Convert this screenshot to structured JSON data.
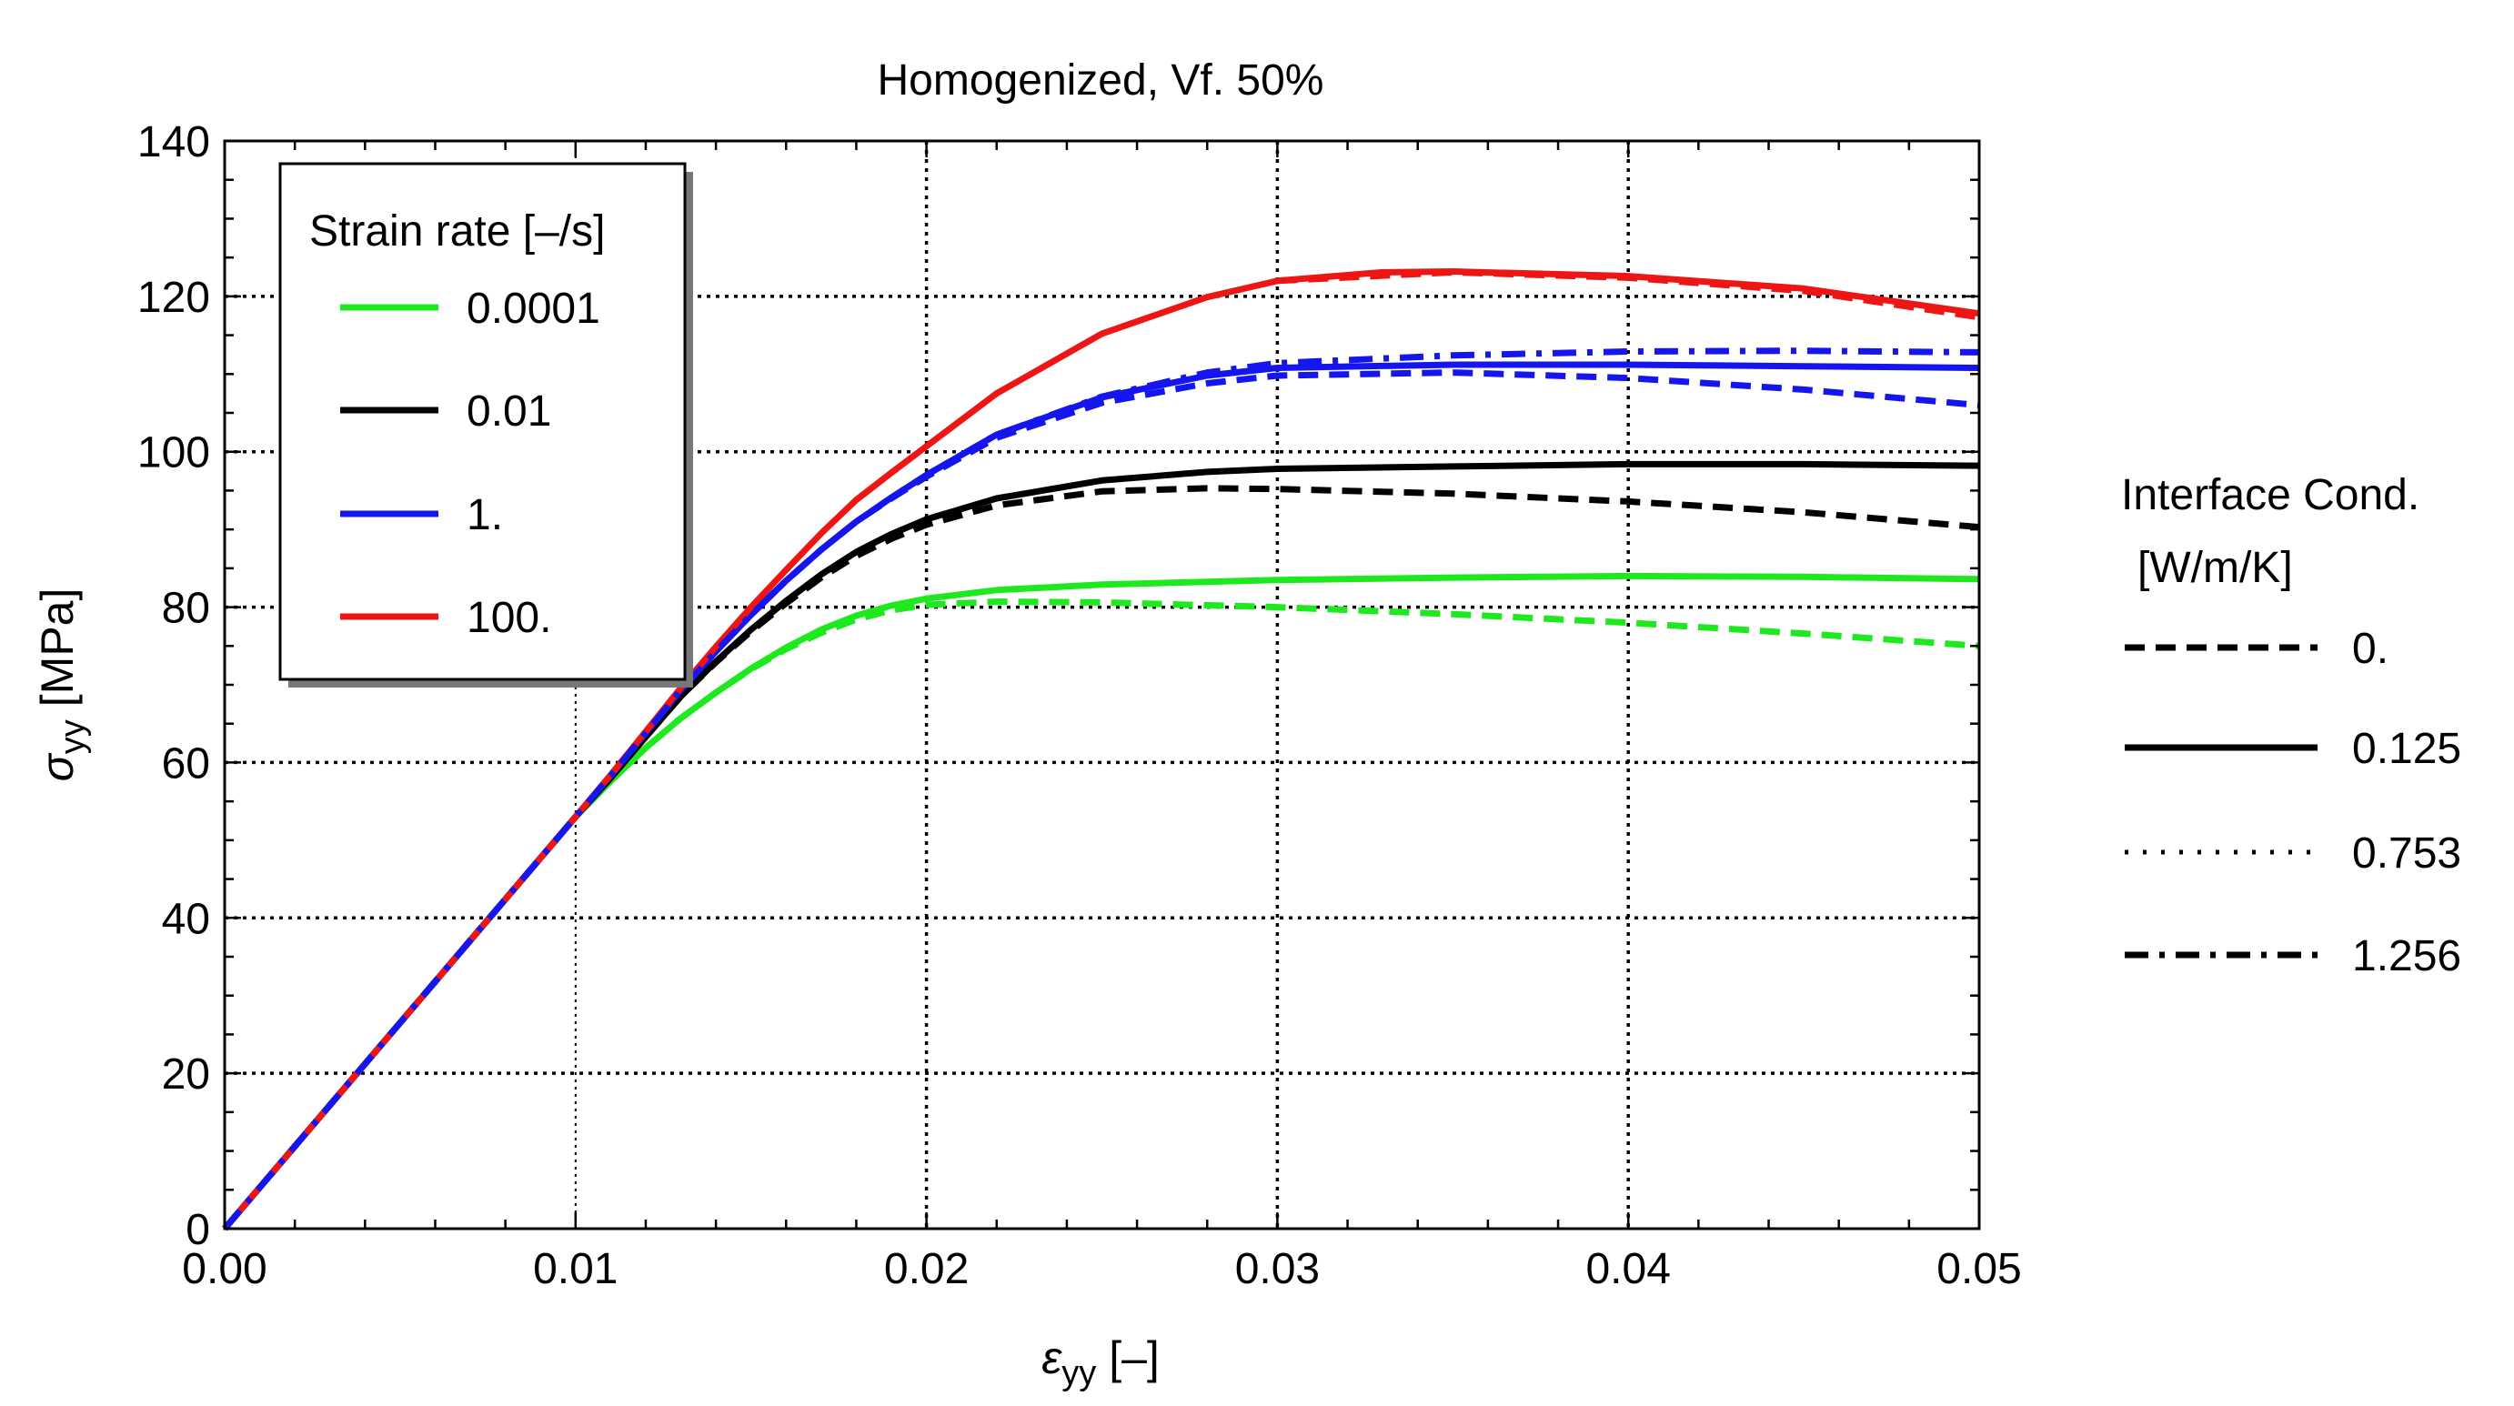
{
  "chart_data": {
    "type": "line",
    "title": "Homogenized, Vf. 50%",
    "xlabel": {
      "symbol": "ε",
      "sub": "yy",
      "unit": "[–]"
    },
    "ylabel": {
      "symbol": "σ",
      "sub": "yy",
      "unit": "[MPa]"
    },
    "xlim": [
      0,
      0.05
    ],
    "ylim": [
      0,
      140
    ],
    "xticks": [
      0,
      0.01,
      0.02,
      0.03,
      0.04,
      0.05
    ],
    "xtick_labels": [
      "0.00",
      "0.01",
      "0.02",
      "0.03",
      "0.04",
      "0.05"
    ],
    "yticks": [
      0,
      20,
      40,
      60,
      80,
      100,
      120,
      140
    ],
    "ytick_labels": [
      "0",
      "20",
      "40",
      "60",
      "80",
      "100",
      "120",
      "140"
    ],
    "grid": true,
    "legend_rate": {
      "title": "Strain rate [–/s]",
      "placement": "top-left",
      "entries": [
        {
          "label": "0.0001",
          "color": "#1ee81e"
        },
        {
          "label": "0.01",
          "color": "#000000"
        },
        {
          "label": "1.",
          "color": "#1515ee"
        },
        {
          "label": "100.",
          "color": "#ee1515"
        }
      ]
    },
    "legend_cond": {
      "title_line1": "Interface Cond.",
      "title_line2": "[W/m/K]",
      "placement": "right",
      "entries": [
        {
          "label": "0.",
          "style": "dashed"
        },
        {
          "label": "0.125",
          "style": "solid"
        },
        {
          "label": "0.753",
          "style": "dotted"
        },
        {
          "label": "1.256",
          "style": "dashdot"
        }
      ]
    },
    "series": [
      {
        "name": "0.0001 / 0.",
        "rate": "0.0001",
        "cond": "0.",
        "color": "#1ee81e",
        "style": "dashed",
        "x": [
          0,
          0.005,
          0.01,
          0.011,
          0.012,
          0.013,
          0.014,
          0.015,
          0.016,
          0.017,
          0.018,
          0.019,
          0.02,
          0.022,
          0.025,
          0.03,
          0.035,
          0.04,
          0.045,
          0.05
        ],
        "y": [
          0,
          26.5,
          53,
          57.6,
          61.9,
          65.7,
          69.0,
          72.0,
          74.6,
          76.7,
          78.4,
          79.6,
          80.3,
          80.7,
          80.6,
          80.0,
          79.1,
          78.0,
          76.6,
          75.0
        ]
      },
      {
        "name": "0.0001 / 0.125",
        "rate": "0.0001",
        "cond": "0.125",
        "color": "#1ee81e",
        "style": "solid",
        "x": [
          0,
          0.005,
          0.01,
          0.011,
          0.012,
          0.013,
          0.014,
          0.015,
          0.016,
          0.017,
          0.018,
          0.019,
          0.02,
          0.022,
          0.025,
          0.03,
          0.035,
          0.04,
          0.045,
          0.05
        ],
        "y": [
          0,
          26.5,
          53,
          57.6,
          61.9,
          65.7,
          69.0,
          72.1,
          74.8,
          77.1,
          78.9,
          80.2,
          81.1,
          82.2,
          82.9,
          83.5,
          83.8,
          84.0,
          83.9,
          83.6
        ]
      },
      {
        "name": "0.01 / 0.",
        "rate": "0.01",
        "cond": "0.",
        "color": "#000000",
        "style": "dashed",
        "x": [
          0,
          0.005,
          0.01,
          0.011,
          0.012,
          0.013,
          0.014,
          0.015,
          0.016,
          0.017,
          0.018,
          0.019,
          0.02,
          0.022,
          0.025,
          0.028,
          0.03,
          0.035,
          0.04,
          0.045,
          0.05
        ],
        "y": [
          0,
          26.5,
          53,
          58.0,
          63.3,
          68.5,
          72.9,
          76.9,
          80.5,
          83.8,
          86.6,
          88.8,
          90.6,
          93.1,
          94.9,
          95.3,
          95.2,
          94.6,
          93.6,
          92.2,
          90.3
        ]
      },
      {
        "name": "0.01 / 0.125",
        "rate": "0.01",
        "cond": "0.125",
        "color": "#000000",
        "style": "solid",
        "x": [
          0,
          0.005,
          0.01,
          0.011,
          0.012,
          0.013,
          0.014,
          0.015,
          0.016,
          0.017,
          0.018,
          0.019,
          0.02,
          0.022,
          0.025,
          0.028,
          0.03,
          0.035,
          0.04,
          0.045,
          0.05
        ],
        "y": [
          0,
          26.5,
          53,
          58.0,
          63.3,
          68.5,
          73.0,
          77.1,
          80.8,
          84.2,
          87.1,
          89.4,
          91.3,
          94.0,
          96.3,
          97.4,
          97.8,
          98.1,
          98.4,
          98.4,
          98.2
        ]
      },
      {
        "name": "1. / 0.",
        "rate": "1.",
        "cond": "0.",
        "color": "#1515ee",
        "style": "dashed",
        "x": [
          0,
          0.005,
          0.01,
          0.011,
          0.012,
          0.013,
          0.014,
          0.015,
          0.016,
          0.017,
          0.018,
          0.019,
          0.02,
          0.022,
          0.025,
          0.028,
          0.03,
          0.035,
          0.04,
          0.045,
          0.05
        ],
        "y": [
          0,
          26.5,
          53,
          58.3,
          63.8,
          69.3,
          74.3,
          79.0,
          83.4,
          87.4,
          91.0,
          94.0,
          96.8,
          101.8,
          106.3,
          108.8,
          109.8,
          110.2,
          109.5,
          108.0,
          106.0
        ]
      },
      {
        "name": "1. / 0.125",
        "rate": "1.",
        "cond": "0.125",
        "color": "#1515ee",
        "style": "solid",
        "x": [
          0,
          0.005,
          0.01,
          0.011,
          0.012,
          0.013,
          0.014,
          0.015,
          0.016,
          0.017,
          0.018,
          0.019,
          0.02,
          0.022,
          0.025,
          0.028,
          0.03,
          0.035,
          0.04,
          0.045,
          0.05
        ],
        "y": [
          0,
          26.5,
          53,
          58.3,
          63.8,
          69.3,
          74.3,
          79.0,
          83.4,
          87.4,
          91.0,
          94.1,
          97.0,
          102.2,
          107.0,
          109.8,
          110.8,
          111.2,
          111.2,
          111.0,
          110.8
        ]
      },
      {
        "name": "1. / 1.256",
        "rate": "1.",
        "cond": "1.256",
        "color": "#1515ee",
        "style": "dashdot",
        "x": [
          0,
          0.005,
          0.01,
          0.011,
          0.012,
          0.013,
          0.014,
          0.015,
          0.016,
          0.017,
          0.018,
          0.019,
          0.02,
          0.022,
          0.025,
          0.028,
          0.03,
          0.035,
          0.04,
          0.045,
          0.05
        ],
        "y": [
          0,
          26.5,
          53,
          58.3,
          63.8,
          69.3,
          74.3,
          79.0,
          83.4,
          87.4,
          91.0,
          94.1,
          97.0,
          102.2,
          107.1,
          110.2,
          111.4,
          112.4,
          112.9,
          113.0,
          112.8
        ]
      },
      {
        "name": "100. / 0.125",
        "rate": "100.",
        "cond": "0.125",
        "color": "#ee1515",
        "style": "solid",
        "x": [
          0,
          0.005,
          0.01,
          0.011,
          0.012,
          0.013,
          0.014,
          0.015,
          0.016,
          0.017,
          0.018,
          0.019,
          0.02,
          0.022,
          0.025,
          0.028,
          0.03,
          0.033,
          0.035,
          0.04,
          0.045,
          0.05
        ],
        "y": [
          0,
          26.5,
          53,
          58.4,
          64.0,
          69.6,
          74.9,
          80.0,
          84.8,
          89.5,
          93.8,
          97.3,
          100.7,
          107.5,
          115.2,
          119.9,
          122.0,
          123.1,
          123.2,
          122.6,
          121.0,
          117.8
        ]
      },
      {
        "name": "100. / 0.",
        "rate": "100.",
        "cond": "0.",
        "color": "#ee1515",
        "style": "dashed",
        "x": [
          0.03,
          0.035,
          0.04,
          0.045,
          0.05
        ],
        "y": [
          122.0,
          123.1,
          122.4,
          120.7,
          117.3
        ]
      }
    ]
  }
}
